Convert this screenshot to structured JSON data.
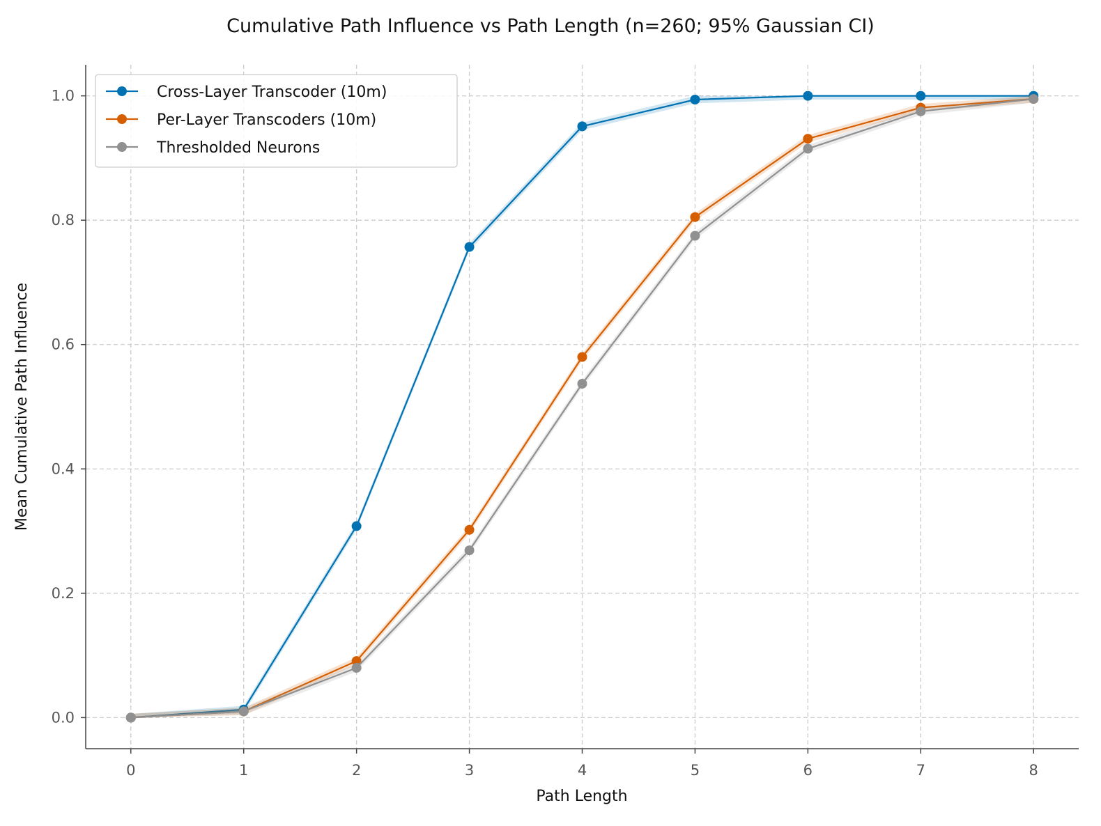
{
  "chart_data": {
    "type": "line",
    "title": "Cumulative Path Influence vs Path Length (n=260; 95% Gaussian CI)",
    "xlabel": "Path Length",
    "ylabel": "Mean Cumulative Path Influence",
    "x": [
      0,
      1,
      2,
      3,
      4,
      5,
      6,
      7,
      8
    ],
    "xlim": [
      -0.4,
      8.4
    ],
    "ylim": [
      -0.05,
      1.05
    ],
    "xticks": [
      "0",
      "1",
      "2",
      "3",
      "4",
      "5",
      "6",
      "7",
      "8"
    ],
    "yticks": [
      "0.0",
      "0.2",
      "0.4",
      "0.6",
      "0.8",
      "1.0"
    ],
    "grid": true,
    "legend_position": "top-left",
    "series": [
      {
        "name": "Cross-Layer Transcoder (10m)",
        "color": "#0072b2",
        "values": [
          0.0,
          0.013,
          0.308,
          0.757,
          0.951,
          0.994,
          1.0,
          1.0,
          1.0
        ]
      },
      {
        "name": "Per-Layer Transcoders (10m)",
        "color": "#d55e00",
        "values": [
          0.0,
          0.01,
          0.091,
          0.302,
          0.58,
          0.805,
          0.931,
          0.981,
          0.995
        ]
      },
      {
        "name": "Thresholded Neurons",
        "color": "#909090",
        "values": [
          0.0,
          0.01,
          0.08,
          0.269,
          0.537,
          0.775,
          0.915,
          0.975,
          0.995
        ]
      }
    ]
  }
}
